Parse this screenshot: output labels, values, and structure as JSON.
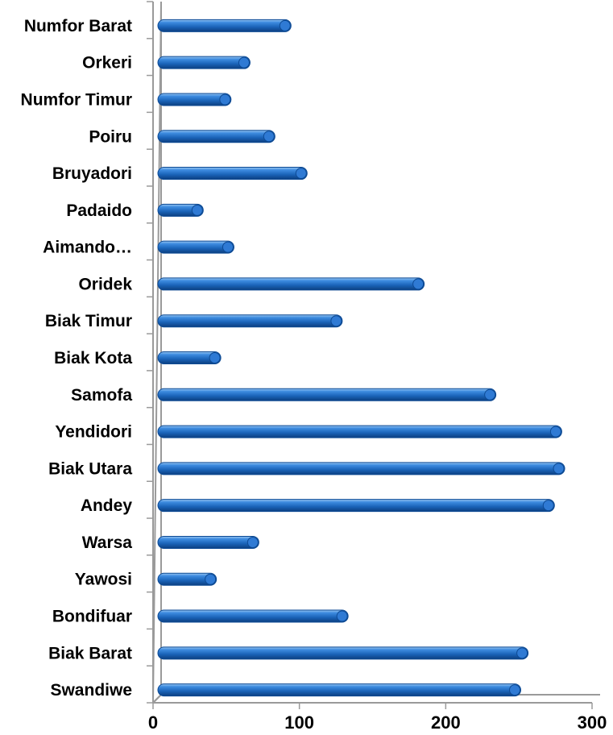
{
  "chart_data": {
    "type": "bar",
    "orientation": "horizontal",
    "categories": [
      "Numfor Barat",
      "Orkeri",
      "Numfor Timur",
      "Poiru",
      "Bruyadori",
      "Padaido",
      "Aimando…",
      "Oridek",
      "Biak Timur",
      "Biak Kota",
      "Samofa",
      "Yendidori",
      "Biak Utara",
      "Andey",
      "Warsa",
      "Yawosi",
      "Bondifuar",
      "Biak Barat",
      "Swandiwe"
    ],
    "values": [
      91,
      63,
      50,
      80,
      102,
      31,
      52,
      182,
      126,
      43,
      231,
      276,
      278,
      271,
      69,
      40,
      130,
      253,
      248
    ],
    "xlim": [
      0,
      300
    ],
    "x_ticks": [
      "0",
      "100",
      "200",
      "300"
    ],
    "bar_color": "#1f6fc1",
    "grid": false,
    "style": "3d-cylinder"
  }
}
